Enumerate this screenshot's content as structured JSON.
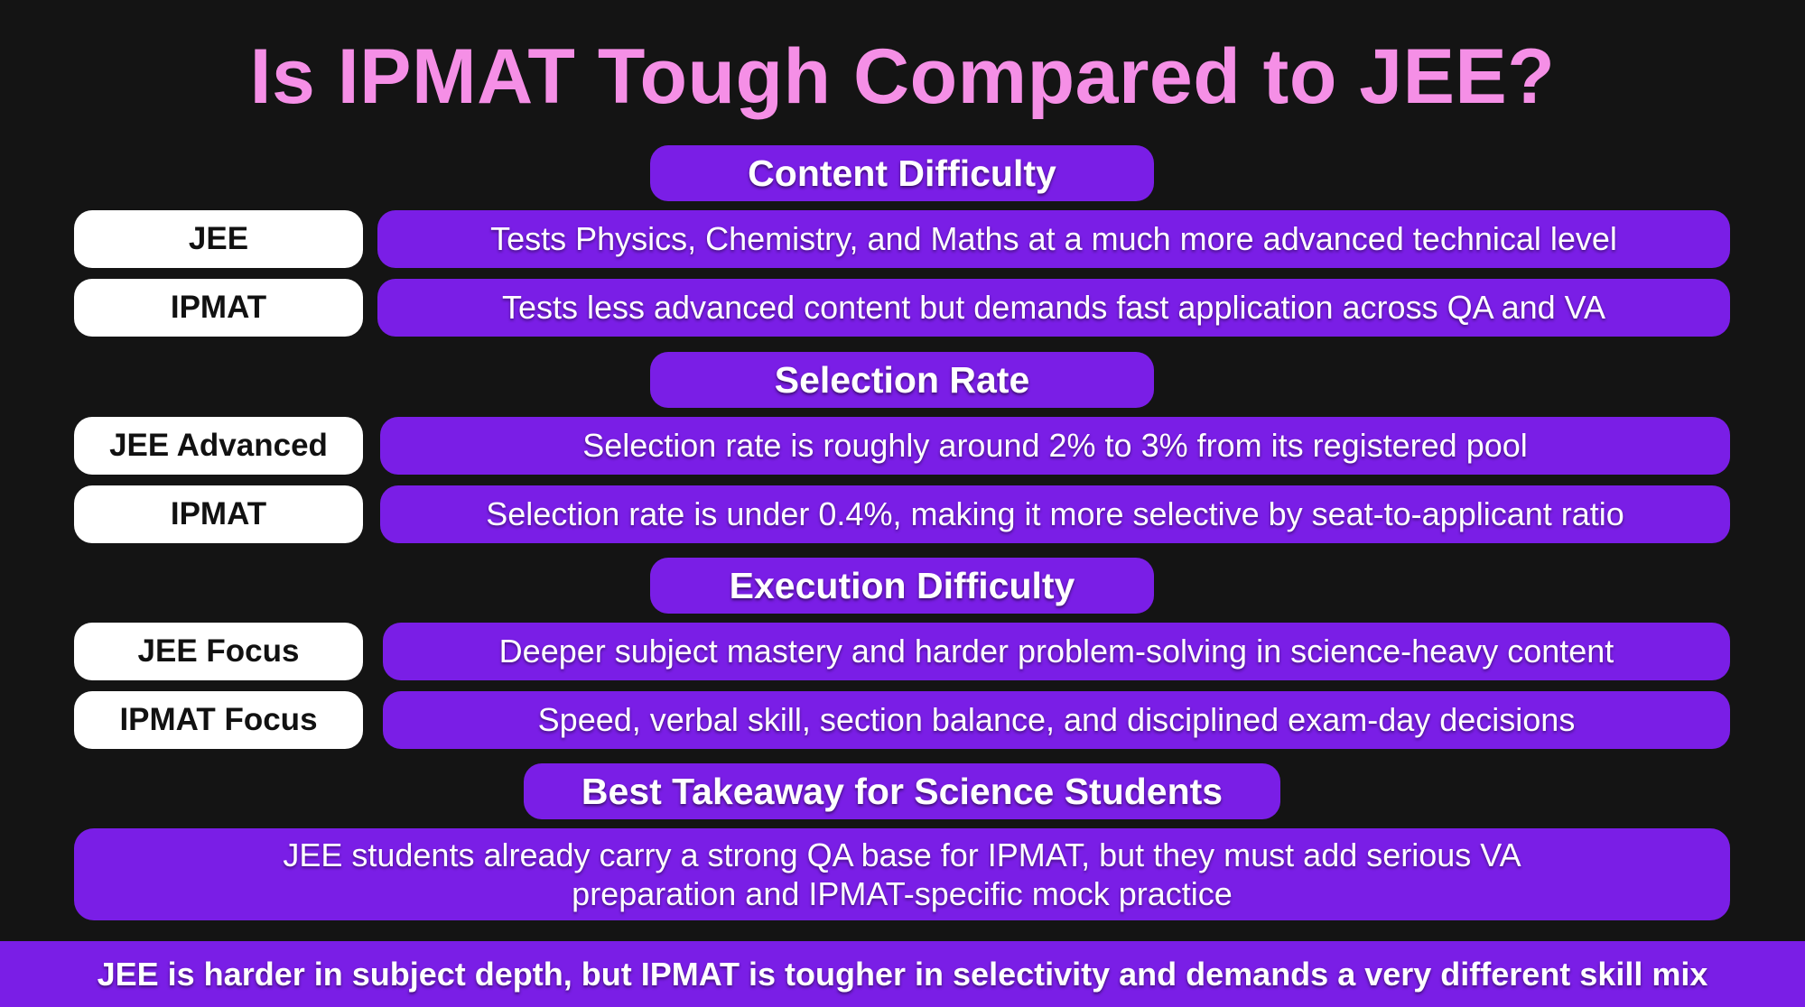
{
  "title": "Is IPMAT Tough Compared to JEE?",
  "sections": [
    {
      "heading": "Content Difficulty",
      "rows": [
        {
          "label": "JEE",
          "text": "Tests Physics, Chemistry, and Maths at a much more advanced technical level"
        },
        {
          "label": "IPMAT",
          "text": "Tests less advanced content but demands fast application across QA and VA"
        }
      ]
    },
    {
      "heading": "Selection Rate",
      "rows": [
        {
          "label": "JEE Advanced",
          "text": "Selection rate is roughly around 2% to 3% from its registered pool"
        },
        {
          "label": "IPMAT",
          "text": "Selection rate is under 0.4%, making it more selective by seat-to-applicant ratio"
        }
      ]
    },
    {
      "heading": "Execution Difficulty",
      "rows": [
        {
          "label": "JEE Focus",
          "text": "Deeper subject mastery and harder problem-solving in science-heavy content"
        },
        {
          "label": "IPMAT Focus",
          "text": "Speed, verbal skill, section balance, and disciplined exam-day decisions"
        }
      ]
    },
    {
      "heading": "Best Takeaway for Science Students",
      "takeaway": "JEE students already carry a strong QA base for IPMAT, but they must add serious VA preparation and IPMAT-specific mock practice"
    }
  ],
  "footer": "JEE is harder in subject depth, but IPMAT is tougher in selectivity and demands a very different skill mix",
  "colors": {
    "background": "#141414",
    "title": "#f58fe6",
    "accent_purple": "#7a1ee6",
    "label_bg": "#ffffff"
  }
}
